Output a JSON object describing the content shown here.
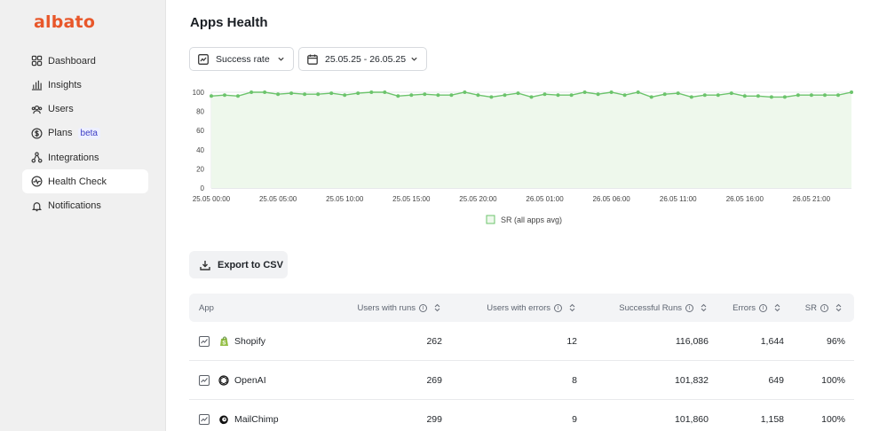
{
  "sidebar": {
    "logo": "albato",
    "items": [
      {
        "label": "Dashboard",
        "icon": "dashboard-grid-icon",
        "active": false
      },
      {
        "label": "Insights",
        "icon": "bar-chart-icon",
        "active": false
      },
      {
        "label": "Users",
        "icon": "users-icon",
        "active": false
      },
      {
        "label": "Plans",
        "icon": "dollar-circle-icon",
        "active": false,
        "badge": "beta"
      },
      {
        "label": "Integrations",
        "icon": "integrations-icon",
        "active": false
      },
      {
        "label": "Health Check",
        "icon": "pulse-icon",
        "active": true
      },
      {
        "label": "Notifications",
        "icon": "bell-icon",
        "active": false
      }
    ]
  },
  "main": {
    "title": "Apps Health",
    "metric_select": {
      "value": "Success rate",
      "icon": "trend-icon"
    },
    "date_range": {
      "value": "25.05.25 - 26.05.25",
      "icon": "calendar-icon"
    },
    "export_label": "Export to CSV"
  },
  "colors": {
    "accent": "#e8572a",
    "series": "#6cc46c",
    "series_fill": "#eef8ec"
  },
  "chart_data": {
    "type": "area",
    "ylim": [
      0,
      100
    ],
    "yticks": [
      0,
      20,
      40,
      60,
      80,
      100
    ],
    "xtick_labels": [
      "25.05 00:00",
      "25.05 05:00",
      "25.05 10:00",
      "25.05 15:00",
      "25.05 20:00",
      "26.05 01:00",
      "26.05 06:00",
      "26.05 11:00",
      "26.05 16:00",
      "26.05 21:00"
    ],
    "series": [
      {
        "name": "SR (all apps avg)",
        "values": [
          96,
          97,
          96,
          100,
          100,
          98,
          99,
          98,
          98,
          99,
          97,
          99,
          100,
          100,
          96,
          97,
          98,
          97,
          97,
          100,
          97,
          95,
          97,
          99,
          95,
          98,
          97,
          97,
          100,
          98,
          100,
          97,
          100,
          95,
          98,
          99,
          95,
          97,
          97,
          99,
          96,
          96,
          95,
          95,
          97,
          97,
          97,
          97,
          100
        ]
      }
    ],
    "legend": "bottom",
    "grid": true
  },
  "table": {
    "columns": [
      "App",
      "Users with runs",
      "Users with errors",
      "Successful Runs",
      "Errors",
      "SR"
    ],
    "rows": [
      {
        "app": "Shopify",
        "logo": "shopify-icon",
        "users_with_runs": "262",
        "users_with_errors": "12",
        "successful_runs": "116,086",
        "errors": "1,644",
        "sr": "96%"
      },
      {
        "app": "OpenAI",
        "logo": "openai-icon",
        "users_with_runs": "269",
        "users_with_errors": "8",
        "successful_runs": "101,832",
        "errors": "649",
        "sr": "100%"
      },
      {
        "app": "MailChimp",
        "logo": "mailchimp-icon",
        "users_with_runs": "299",
        "users_with_errors": "9",
        "successful_runs": "101,860",
        "errors": "1,158",
        "sr": "100%"
      }
    ]
  }
}
